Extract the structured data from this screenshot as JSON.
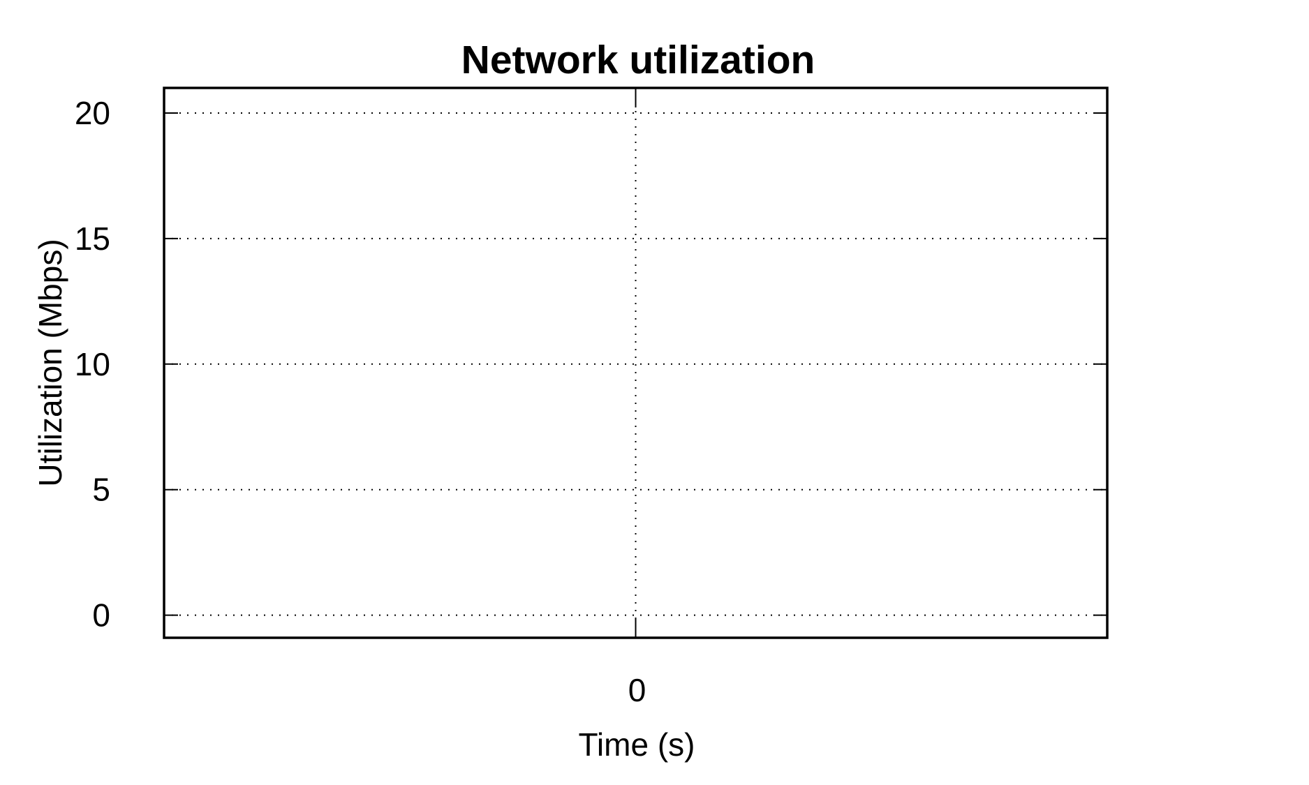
{
  "chart_data": {
    "type": "line",
    "title": "Network utilization",
    "xlabel": "Time (s)",
    "ylabel": "Utilization (Mbps)",
    "x_ticks": [
      "0"
    ],
    "y_ticks": [
      "0",
      "5",
      "10",
      "15",
      "20"
    ],
    "xlim": [
      -1,
      1
    ],
    "ylim": [
      -0.9,
      21
    ],
    "grid": true,
    "legend": "none",
    "series": [],
    "colors": {
      "axis": "#000000",
      "background": "#ffffff"
    }
  }
}
